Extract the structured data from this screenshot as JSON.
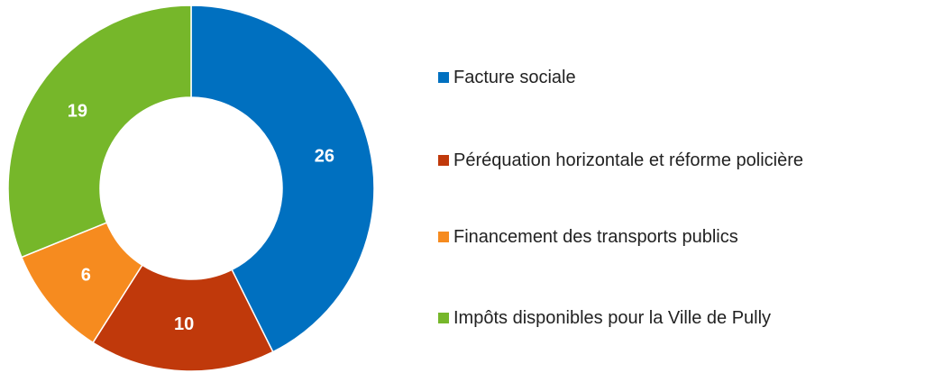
{
  "chart_data": {
    "type": "donut",
    "categories": [
      "Facture sociale",
      "Péréquation horizontale et réforme policière",
      "Financement des transports publics",
      "Impôts disponibles pour la Ville de Pully"
    ],
    "values": [
      26,
      10,
      6,
      19
    ],
    "colors": [
      "#0070c0",
      "#c0390b",
      "#f68b1f",
      "#76b72a"
    ],
    "legend": "right"
  }
}
